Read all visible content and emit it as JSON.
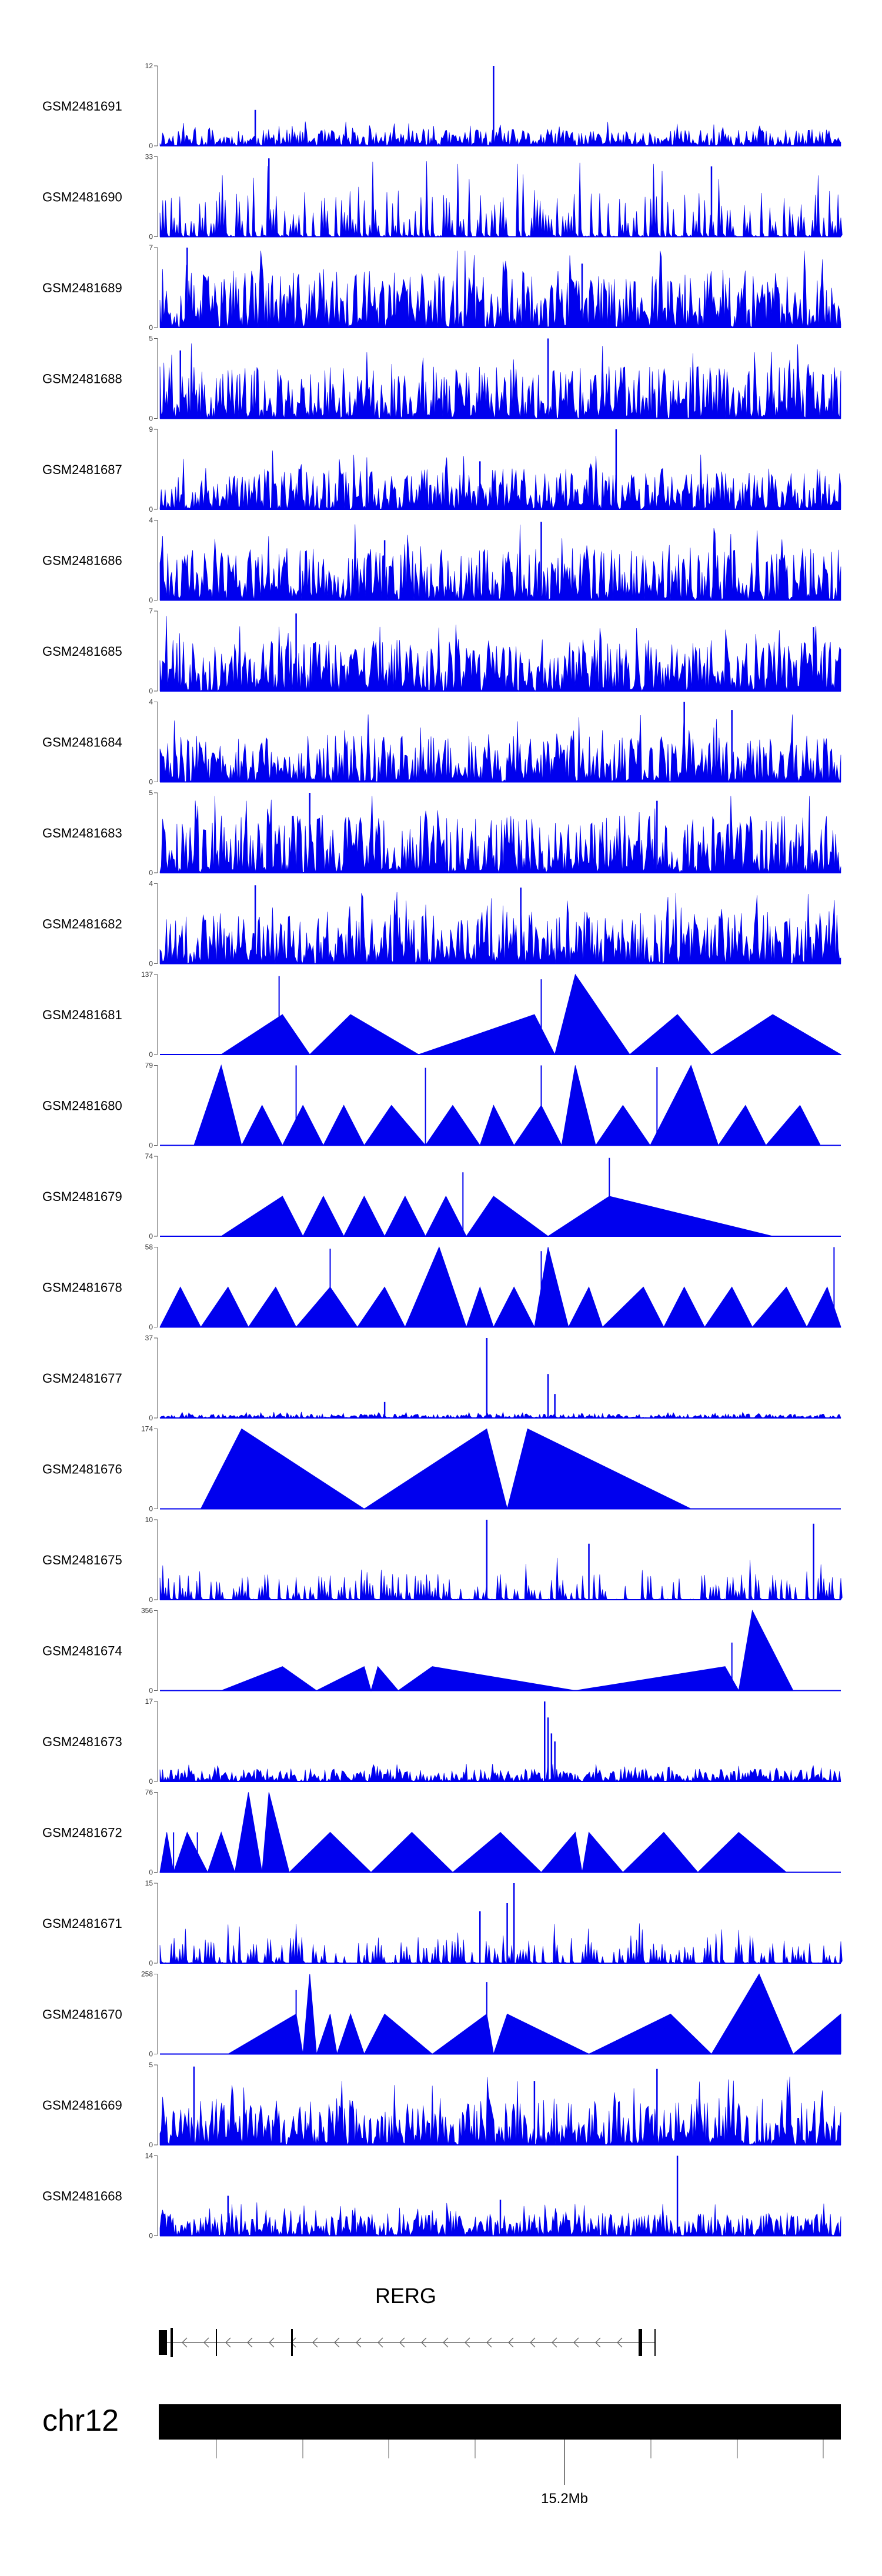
{
  "chart_data": {
    "type": "area",
    "title": "",
    "chromosome": "chr12",
    "axis_tick_label": "15.2Mb",
    "gene": {
      "name": "RERG",
      "strand": "-"
    },
    "color": "#0000ee",
    "tracks": [
      {
        "name": "GSM2481691",
        "ymin": 0,
        "ymax": 12,
        "style": "dense",
        "seed": 11,
        "typical": 0.16,
        "peaks": [
          [
            0.49,
            1.0
          ],
          [
            0.14,
            0.45
          ]
        ]
      },
      {
        "name": "GSM2481690",
        "ymin": 0,
        "ymax": 33,
        "style": "spiky",
        "seed": 23,
        "typical": 0.45,
        "peaks": [
          [
            0.16,
            0.98
          ],
          [
            0.81,
            0.88
          ]
        ]
      },
      {
        "name": "GSM2481689",
        "ymin": 0,
        "ymax": 7,
        "style": "dense",
        "seed": 37,
        "typical": 0.55,
        "peaks": [
          [
            0.04,
            1.0
          ],
          [
            0.62,
            0.8
          ]
        ]
      },
      {
        "name": "GSM2481688",
        "ymin": 0,
        "ymax": 5,
        "style": "dense",
        "seed": 41,
        "typical": 0.5,
        "peaks": [
          [
            0.57,
            1.0
          ],
          [
            0.03,
            0.85
          ]
        ]
      },
      {
        "name": "GSM2481687",
        "ymin": 0,
        "ymax": 9,
        "style": "dense",
        "seed": 53,
        "typical": 0.4,
        "peaks": [
          [
            0.67,
            1.0
          ],
          [
            0.47,
            0.6
          ]
        ]
      },
      {
        "name": "GSM2481686",
        "ymin": 0,
        "ymax": 4,
        "style": "dense",
        "seed": 61,
        "typical": 0.5,
        "peaks": [
          [
            0.56,
            0.98
          ],
          [
            0.33,
            0.75
          ]
        ]
      },
      {
        "name": "GSM2481685",
        "ymin": 0,
        "ymax": 7,
        "style": "dense",
        "seed": 71,
        "typical": 0.5,
        "peaks": [
          [
            0.2,
            0.97
          ],
          [
            0.96,
            0.8
          ]
        ]
      },
      {
        "name": "GSM2481684",
        "ymin": 0,
        "ymax": 4,
        "style": "dense",
        "seed": 83,
        "typical": 0.45,
        "peaks": [
          [
            0.77,
            1.0
          ],
          [
            0.84,
            0.9
          ]
        ]
      },
      {
        "name": "GSM2481683",
        "ymin": 0,
        "ymax": 5,
        "style": "dense",
        "seed": 97,
        "typical": 0.55,
        "peaks": [
          [
            0.22,
            1.0
          ],
          [
            0.73,
            0.9
          ]
        ]
      },
      {
        "name": "GSM2481682",
        "ymin": 0,
        "ymax": 4,
        "style": "dense",
        "seed": 101,
        "typical": 0.5,
        "peaks": [
          [
            0.14,
            0.98
          ],
          [
            0.53,
            0.95
          ]
        ]
      },
      {
        "name": "GSM2481681",
        "ymin": 0,
        "ymax": 137,
        "style": "triangles",
        "points": [
          [
            0.09,
            0
          ],
          [
            0.18,
            0.5
          ],
          [
            0.22,
            0
          ],
          [
            0.28,
            0.5
          ],
          [
            0.38,
            0
          ],
          [
            0.55,
            0.5
          ],
          [
            0.58,
            0
          ],
          [
            0.61,
            1.0
          ],
          [
            0.69,
            0
          ],
          [
            0.76,
            0.5
          ],
          [
            0.81,
            0
          ],
          [
            0.9,
            0.5
          ],
          [
            1.0,
            0
          ]
        ],
        "spikes": [
          [
            0.175,
            0.98
          ],
          [
            0.56,
            0.94
          ]
        ]
      },
      {
        "name": "GSM2481680",
        "ymin": 0,
        "ymax": 79,
        "style": "triangles",
        "points": [
          [
            0.05,
            0
          ],
          [
            0.09,
            1.0
          ],
          [
            0.12,
            0
          ],
          [
            0.15,
            0.5
          ],
          [
            0.18,
            0
          ],
          [
            0.21,
            0.5
          ],
          [
            0.24,
            0
          ],
          [
            0.27,
            0.5
          ],
          [
            0.3,
            0
          ],
          [
            0.34,
            0.5
          ],
          [
            0.39,
            0
          ],
          [
            0.43,
            0.5
          ],
          [
            0.47,
            0
          ],
          [
            0.49,
            0.5
          ],
          [
            0.52,
            0
          ],
          [
            0.56,
            0.5
          ],
          [
            0.59,
            0
          ],
          [
            0.61,
            1.0
          ],
          [
            0.64,
            0
          ],
          [
            0.68,
            0.5
          ],
          [
            0.72,
            0
          ],
          [
            0.78,
            1.0
          ],
          [
            0.82,
            0
          ],
          [
            0.86,
            0.5
          ],
          [
            0.89,
            0
          ],
          [
            0.94,
            0.5
          ],
          [
            0.97,
            0
          ]
        ],
        "spikes": [
          [
            0.2,
            1.0
          ],
          [
            0.39,
            0.97
          ],
          [
            0.56,
            1.0
          ],
          [
            0.73,
            0.98
          ]
        ]
      },
      {
        "name": "GSM2481679",
        "ymin": 0,
        "ymax": 74,
        "style": "triangles",
        "points": [
          [
            0.09,
            0
          ],
          [
            0.18,
            0.5
          ],
          [
            0.21,
            0
          ],
          [
            0.24,
            0.5
          ],
          [
            0.27,
            0
          ],
          [
            0.3,
            0.5
          ],
          [
            0.33,
            0
          ],
          [
            0.36,
            0.5
          ],
          [
            0.39,
            0
          ],
          [
            0.42,
            0.5
          ],
          [
            0.45,
            0
          ],
          [
            0.49,
            0.5
          ],
          [
            0.57,
            0
          ],
          [
            0.66,
            0.5
          ],
          [
            0.9,
            0
          ]
        ],
        "spikes": [
          [
            0.66,
            0.98
          ],
          [
            0.445,
            0.8
          ]
        ]
      },
      {
        "name": "GSM2481678",
        "ymin": 0,
        "ymax": 58,
        "style": "triangles",
        "points": [
          [
            0.0,
            0
          ],
          [
            0.03,
            0.5
          ],
          [
            0.06,
            0
          ],
          [
            0.1,
            0.5
          ],
          [
            0.13,
            0
          ],
          [
            0.17,
            0.5
          ],
          [
            0.2,
            0
          ],
          [
            0.25,
            0.5
          ],
          [
            0.29,
            0
          ],
          [
            0.33,
            0.5
          ],
          [
            0.36,
            0
          ],
          [
            0.41,
            1.0
          ],
          [
            0.45,
            0
          ],
          [
            0.47,
            0.5
          ],
          [
            0.49,
            0
          ],
          [
            0.52,
            0.5
          ],
          [
            0.55,
            0
          ],
          [
            0.57,
            1.0
          ],
          [
            0.6,
            0
          ],
          [
            0.63,
            0.5
          ],
          [
            0.65,
            0
          ],
          [
            0.71,
            0.5
          ],
          [
            0.74,
            0
          ],
          [
            0.77,
            0.5
          ],
          [
            0.8,
            0
          ],
          [
            0.84,
            0.5
          ],
          [
            0.87,
            0
          ],
          [
            0.92,
            0.5
          ],
          [
            0.95,
            0
          ],
          [
            0.98,
            0.5
          ],
          [
            1.0,
            0
          ]
        ],
        "spikes": [
          [
            0.25,
            0.98
          ],
          [
            0.56,
            0.95
          ],
          [
            0.99,
            1.0
          ]
        ]
      },
      {
        "name": "GSM2481677",
        "ymin": 0,
        "ymax": 37,
        "style": "dense",
        "seed": 131,
        "typical": 0.04,
        "peaks": [
          [
            0.48,
            1.0
          ],
          [
            0.57,
            0.55
          ],
          [
            0.58,
            0.3
          ],
          [
            0.33,
            0.2
          ]
        ]
      },
      {
        "name": "GSM2481676",
        "ymin": 0,
        "ymax": 174,
        "style": "triangles",
        "points": [
          [
            0.06,
            0
          ],
          [
            0.12,
            1.0
          ],
          [
            0.3,
            0
          ],
          [
            0.48,
            1.0
          ],
          [
            0.51,
            0
          ],
          [
            0.54,
            1.0
          ],
          [
            0.78,
            0
          ]
        ],
        "spikes": []
      },
      {
        "name": "GSM2481675",
        "ymin": 0,
        "ymax": 10,
        "style": "spiky",
        "seed": 149,
        "typical": 0.25,
        "peaks": [
          [
            0.48,
            1.0
          ],
          [
            0.96,
            0.95
          ],
          [
            0.63,
            0.7
          ]
        ]
      },
      {
        "name": "GSM2481674",
        "ymin": 0,
        "ymax": 356,
        "style": "triangles",
        "points": [
          [
            0.09,
            0
          ],
          [
            0.18,
            0.3
          ],
          [
            0.23,
            0
          ],
          [
            0.3,
            0.3
          ],
          [
            0.31,
            0
          ],
          [
            0.32,
            0.3
          ],
          [
            0.35,
            0
          ],
          [
            0.4,
            0.3
          ],
          [
            0.61,
            0
          ],
          [
            0.83,
            0.3
          ],
          [
            0.85,
            0
          ],
          [
            0.87,
            1.0
          ],
          [
            0.93,
            0
          ]
        ],
        "spikes": [
          [
            0.84,
            0.6
          ]
        ]
      },
      {
        "name": "GSM2481673",
        "ymin": 0,
        "ymax": 17,
        "style": "dense",
        "seed": 173,
        "typical": 0.12,
        "peaks": [
          [
            0.565,
            1.0
          ],
          [
            0.57,
            0.8
          ],
          [
            0.575,
            0.6
          ],
          [
            0.58,
            0.5
          ]
        ]
      },
      {
        "name": "GSM2481672",
        "ymin": 0,
        "ymax": 76,
        "style": "triangles",
        "points": [
          [
            0.0,
            0
          ],
          [
            0.01,
            0.5
          ],
          [
            0.02,
            0
          ],
          [
            0.04,
            0.5
          ],
          [
            0.07,
            0
          ],
          [
            0.09,
            0.5
          ],
          [
            0.11,
            0
          ],
          [
            0.13,
            1.0
          ],
          [
            0.15,
            0
          ],
          [
            0.16,
            1.0
          ],
          [
            0.19,
            0
          ],
          [
            0.25,
            0.5
          ],
          [
            0.31,
            0
          ],
          [
            0.37,
            0.5
          ],
          [
            0.43,
            0
          ],
          [
            0.5,
            0.5
          ],
          [
            0.56,
            0
          ],
          [
            0.61,
            0.5
          ],
          [
            0.62,
            0
          ],
          [
            0.63,
            0.5
          ],
          [
            0.68,
            0
          ],
          [
            0.74,
            0.5
          ],
          [
            0.79,
            0
          ],
          [
            0.85,
            0.5
          ],
          [
            0.92,
            0
          ]
        ],
        "spikes": [
          [
            0.02,
            0.5
          ],
          [
            0.055,
            0.5
          ]
        ]
      },
      {
        "name": "GSM2481671",
        "ymin": 0,
        "ymax": 15,
        "style": "spiky",
        "seed": 191,
        "typical": 0.25,
        "peaks": [
          [
            0.52,
            1.0
          ],
          [
            0.51,
            0.75
          ],
          [
            0.47,
            0.65
          ]
        ]
      },
      {
        "name": "GSM2481670",
        "ymin": 0,
        "ymax": 258,
        "style": "triangles",
        "points": [
          [
            0.1,
            0
          ],
          [
            0.2,
            0.5
          ],
          [
            0.21,
            0
          ],
          [
            0.22,
            1.0
          ],
          [
            0.23,
            0
          ],
          [
            0.25,
            0.5
          ],
          [
            0.26,
            0
          ],
          [
            0.28,
            0.5
          ],
          [
            0.3,
            0
          ],
          [
            0.33,
            0.5
          ],
          [
            0.4,
            0
          ],
          [
            0.48,
            0.5
          ],
          [
            0.49,
            0
          ],
          [
            0.51,
            0.5
          ],
          [
            0.63,
            0
          ],
          [
            0.75,
            0.5
          ],
          [
            0.81,
            0
          ],
          [
            0.88,
            1.0
          ],
          [
            0.93,
            0
          ],
          [
            1.0,
            0.5
          ]
        ],
        "spikes": [
          [
            0.48,
            0.9
          ],
          [
            0.2,
            0.8
          ]
        ]
      },
      {
        "name": "GSM2481669",
        "ymin": 0,
        "ymax": 5,
        "style": "dense",
        "seed": 211,
        "typical": 0.45,
        "peaks": [
          [
            0.05,
            0.98
          ],
          [
            0.73,
            0.95
          ],
          [
            0.55,
            0.8
          ]
        ]
      },
      {
        "name": "GSM2481668",
        "ymin": 0,
        "ymax": 14,
        "style": "dense",
        "seed": 223,
        "typical": 0.22,
        "peaks": [
          [
            0.76,
            1.0
          ],
          [
            0.1,
            0.5
          ],
          [
            0.5,
            0.45
          ]
        ]
      }
    ]
  }
}
